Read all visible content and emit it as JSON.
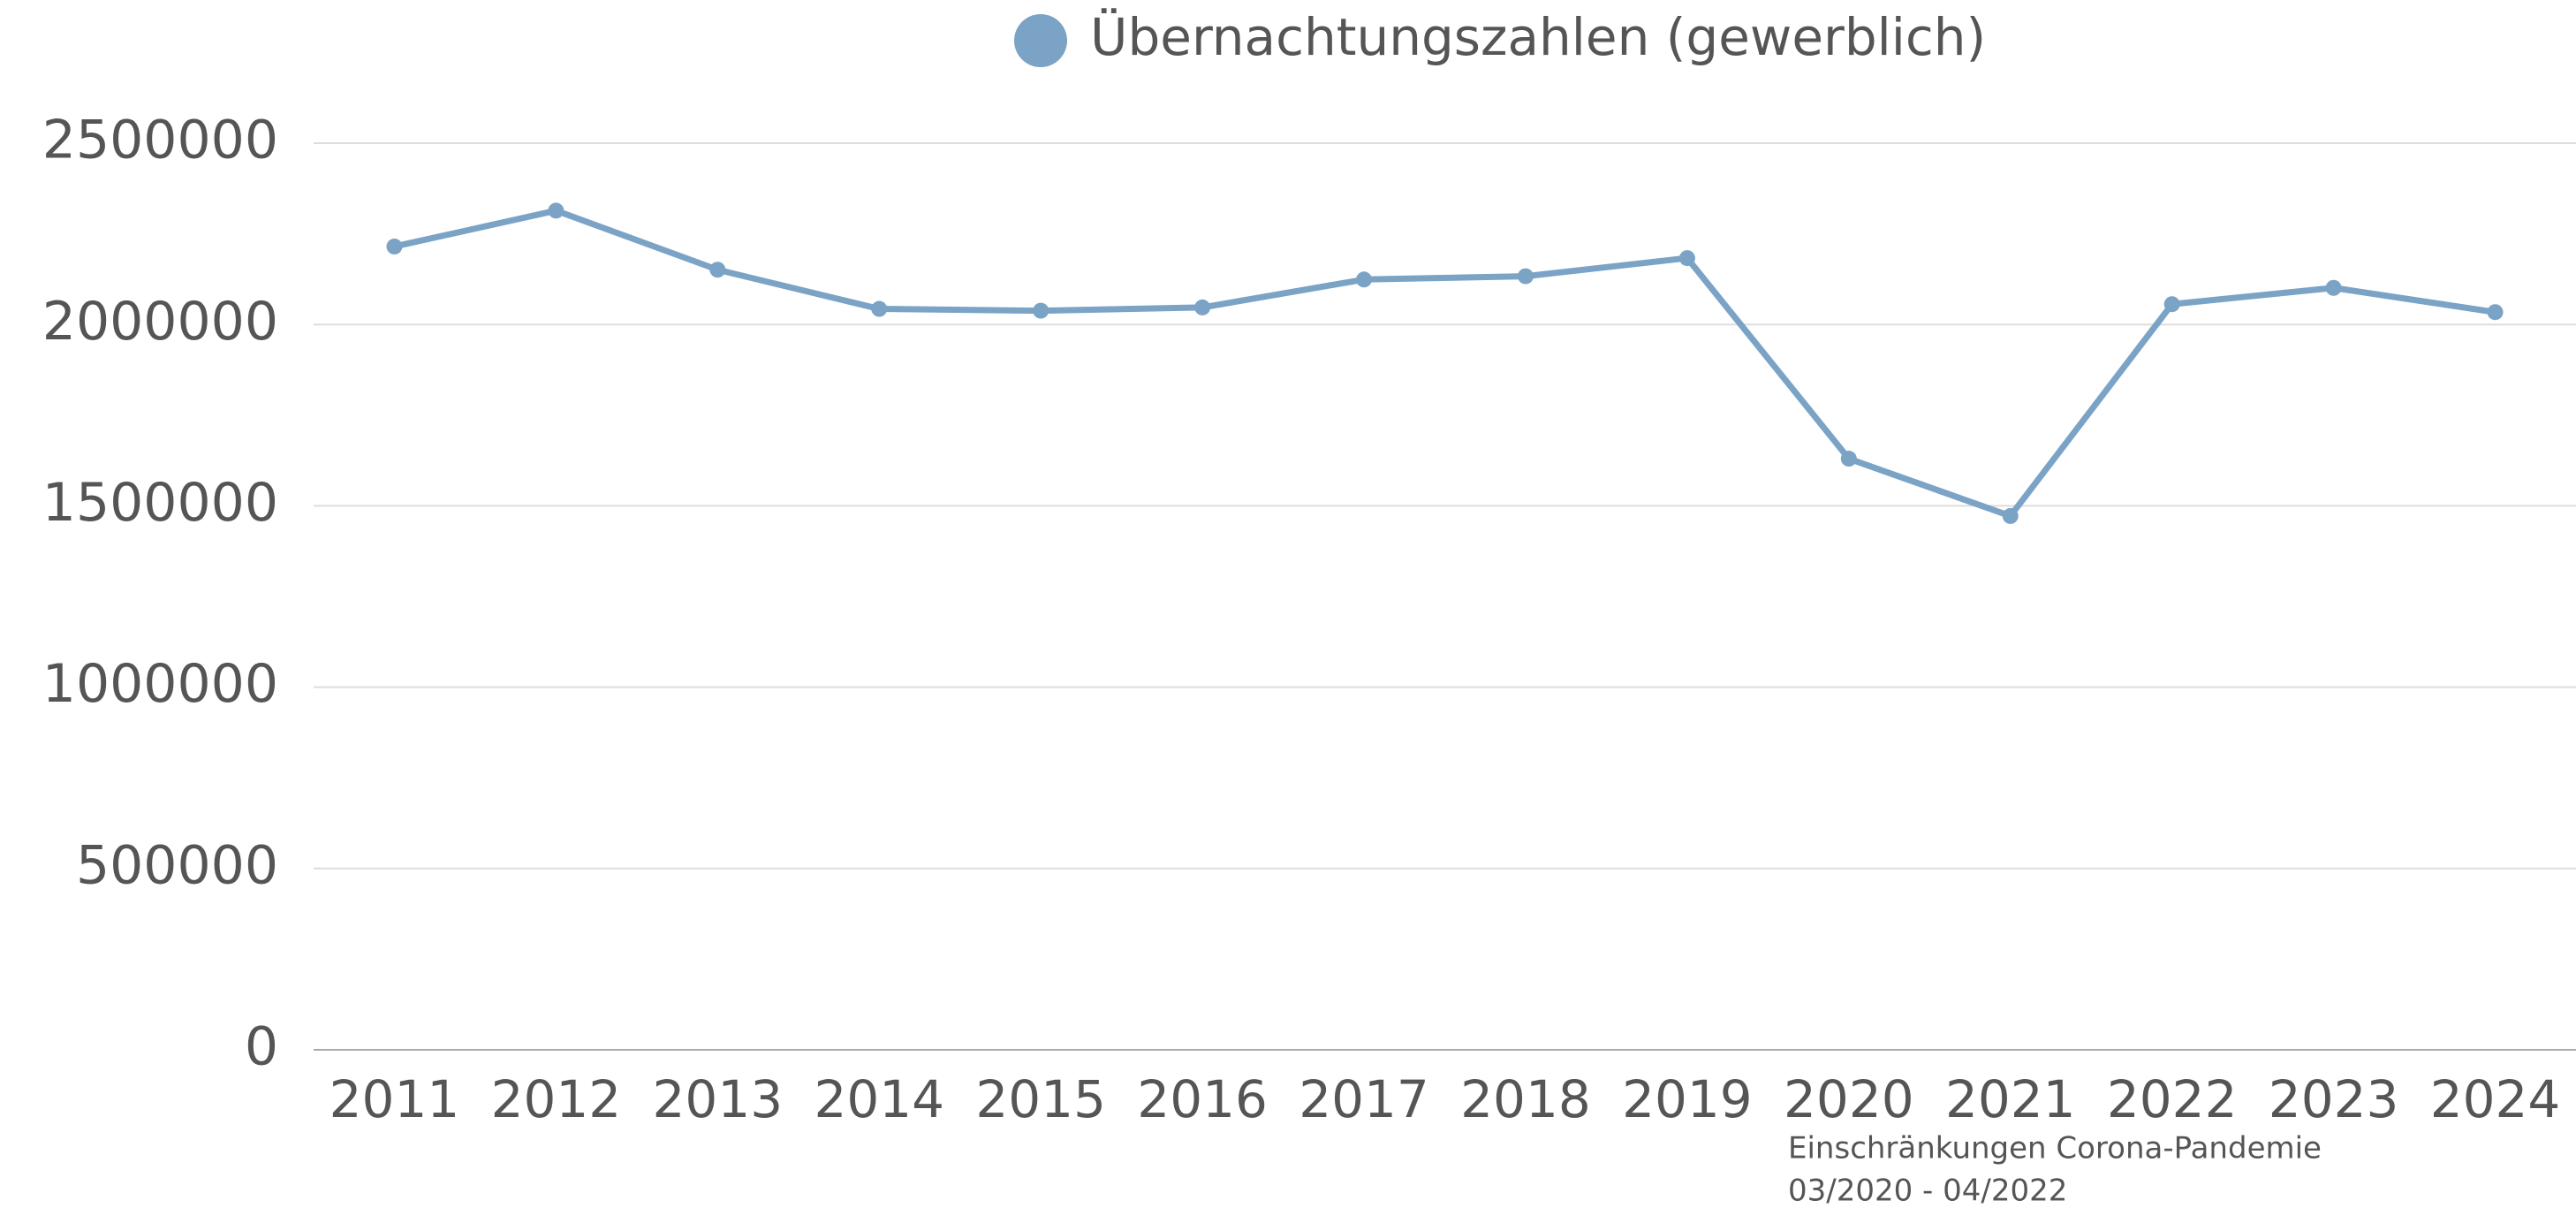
{
  "chart_data": {
    "type": "line",
    "categories": [
      "2011",
      "2012",
      "2013",
      "2014",
      "2015",
      "2016",
      "2017",
      "2018",
      "2019",
      "2020",
      "2021",
      "2022",
      "2023",
      "2024"
    ],
    "series": [
      {
        "name": "Übernachtungszahlen (gewerblich)",
        "color": "#7ba3c6",
        "values": [
          2215000,
          2314000,
          2151000,
          2043000,
          2038000,
          2047000,
          2124000,
          2133000,
          2183000,
          1630000,
          1472000,
          2056000,
          2101000,
          2034000
        ]
      }
    ],
    "ylim": [
      0,
      2500000
    ],
    "yticks": [
      0,
      500000,
      1000000,
      1500000,
      2000000,
      2500000
    ],
    "grid": true,
    "legend": "top",
    "annotations": [
      "Einschränkungen Corona-Pandemie",
      "03/2020 - 04/2022"
    ]
  }
}
